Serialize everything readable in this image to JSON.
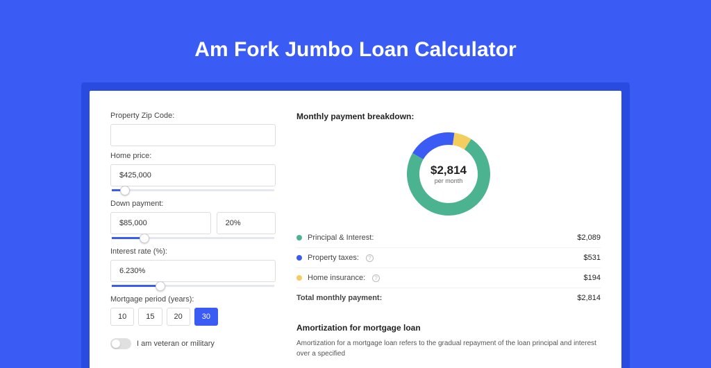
{
  "page": {
    "title": "Am Fork Jumbo Loan Calculator",
    "background_color": "#3b5bf5",
    "shadow_color": "#2a4be0"
  },
  "form": {
    "zip": {
      "label": "Property Zip Code:",
      "value": ""
    },
    "home_price": {
      "label": "Home price:",
      "value": "$425,000",
      "slider_pct": 8
    },
    "down_payment": {
      "label": "Down payment:",
      "value": "$85,000",
      "pct_value": "20%",
      "slider_pct": 20
    },
    "interest_rate": {
      "label": "Interest rate (%):",
      "value": "6.230%",
      "slider_pct": 30
    },
    "mortgage_period": {
      "label": "Mortgage period (years):",
      "options": [
        "10",
        "15",
        "20",
        "30"
      ],
      "selected_index": 3
    },
    "veteran": {
      "label": "I am veteran or military",
      "checked": false
    }
  },
  "breakdown": {
    "title": "Monthly payment breakdown:",
    "total_amount": "$2,814",
    "total_sub": "per month",
    "rows": [
      {
        "label": "Principal & Interest:",
        "value": "$2,089",
        "color": "#4bb38f",
        "info": false,
        "pct": 74.2
      },
      {
        "label": "Property taxes:",
        "value": "$531",
        "color": "#3b5bf5",
        "info": true,
        "pct": 18.9
      },
      {
        "label": "Home insurance:",
        "value": "$194",
        "color": "#f3ce5e",
        "info": true,
        "pct": 6.9
      }
    ],
    "total_row": {
      "label": "Total monthly payment:",
      "value": "$2,814"
    },
    "donut": {
      "size": 120,
      "thickness": 18,
      "bg": "#ffffff"
    }
  },
  "amortization": {
    "title": "Amortization for mortgage loan",
    "text": "Amortization for a mortgage loan refers to the gradual repayment of the loan principal and interest over a specified"
  }
}
